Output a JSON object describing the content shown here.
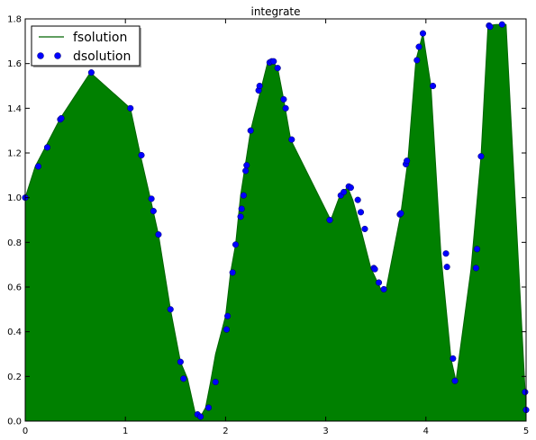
{
  "chart_data": {
    "type": "area",
    "title": "integrate",
    "xlabel": "",
    "ylabel": "",
    "xlim": [
      0,
      5
    ],
    "ylim": [
      0,
      1.8
    ],
    "x_ticks": [
      "0",
      "1",
      "2",
      "3",
      "4",
      "5"
    ],
    "y_ticks": [
      "0.0",
      "0.2",
      "0.4",
      "0.6",
      "0.8",
      "1.0",
      "1.2",
      "1.4",
      "1.6",
      "1.8"
    ],
    "grid": false,
    "legend_position": "top-left",
    "colors": {
      "fill": "#008000",
      "line": "#006400",
      "marker": "#0000ff",
      "marker_edge": "#000066"
    },
    "series": [
      {
        "name": "fsolution",
        "style": "line-filled",
        "x": [
          0,
          0.1,
          0.2,
          0.35,
          0.65,
          1.05,
          1.15,
          1.25,
          1.33,
          1.45,
          1.55,
          1.62,
          1.7,
          1.75,
          1.8,
          1.85,
          1.9,
          2.0,
          2.05,
          2.1,
          2.15,
          2.25,
          2.35,
          2.42,
          2.47,
          2.52,
          2.58,
          2.65,
          3.05,
          3.15,
          3.22,
          3.27,
          3.35,
          3.45,
          3.55,
          3.6,
          3.75,
          3.82,
          3.9,
          3.97,
          4.05,
          4.15,
          4.25,
          4.3,
          4.45,
          4.55,
          4.62,
          4.7,
          4.8,
          5.0
        ],
        "y": [
          1.0,
          1.14,
          1.225,
          1.355,
          1.56,
          1.4,
          1.19,
          0.995,
          0.835,
          0.5,
          0.265,
          0.19,
          0.03,
          0.02,
          0.06,
          0.175,
          0.3,
          0.47,
          0.665,
          0.79,
          1.01,
          1.3,
          1.48,
          1.605,
          1.61,
          1.58,
          1.44,
          1.26,
          0.9,
          1.02,
          1.045,
          0.99,
          0.86,
          0.685,
          0.59,
          0.585,
          0.93,
          1.165,
          1.615,
          1.735,
          1.5,
          0.745,
          0.28,
          0.18,
          0.68,
          1.185,
          1.77,
          1.775,
          1.775,
          0.05
        ]
      },
      {
        "name": "dsolution",
        "style": "markers",
        "x": [
          0.0,
          0.13,
          0.22,
          0.35,
          0.36,
          0.66,
          1.05,
          1.16,
          1.26,
          1.28,
          1.33,
          1.45,
          1.55,
          1.58,
          1.72,
          1.75,
          1.83,
          1.9,
          2.01,
          2.02,
          2.07,
          2.1,
          2.15,
          2.16,
          2.18,
          2.2,
          2.21,
          2.25,
          2.33,
          2.34,
          2.44,
          2.46,
          2.48,
          2.52,
          2.58,
          2.6,
          2.66,
          3.04,
          3.15,
          3.18,
          3.23,
          3.25,
          3.32,
          3.35,
          3.39,
          3.48,
          3.49,
          3.53,
          3.58,
          3.74,
          3.75,
          3.8,
          3.81,
          3.91,
          3.93,
          3.97,
          4.07,
          4.2,
          4.21,
          4.27,
          4.29,
          4.5,
          4.51,
          4.55,
          4.63,
          4.64,
          4.76,
          4.99,
          5.0
        ],
        "y": [
          1.0,
          1.14,
          1.225,
          1.35,
          1.355,
          1.56,
          1.4,
          1.19,
          0.995,
          0.94,
          0.835,
          0.5,
          0.265,
          0.19,
          0.03,
          0.02,
          0.06,
          0.175,
          0.41,
          0.47,
          0.665,
          0.79,
          0.915,
          0.95,
          1.01,
          1.12,
          1.145,
          1.3,
          1.48,
          1.5,
          1.605,
          1.61,
          1.61,
          1.58,
          1.44,
          1.4,
          1.26,
          0.9,
          1.01,
          1.025,
          1.05,
          1.045,
          0.99,
          0.935,
          0.86,
          0.685,
          0.68,
          0.62,
          0.59,
          0.925,
          0.93,
          1.15,
          1.165,
          1.615,
          1.675,
          1.735,
          1.5,
          0.75,
          0.69,
          0.28,
          0.18,
          0.685,
          0.77,
          1.185,
          1.77,
          1.765,
          1.775,
          0.13,
          0.05
        ]
      }
    ]
  }
}
